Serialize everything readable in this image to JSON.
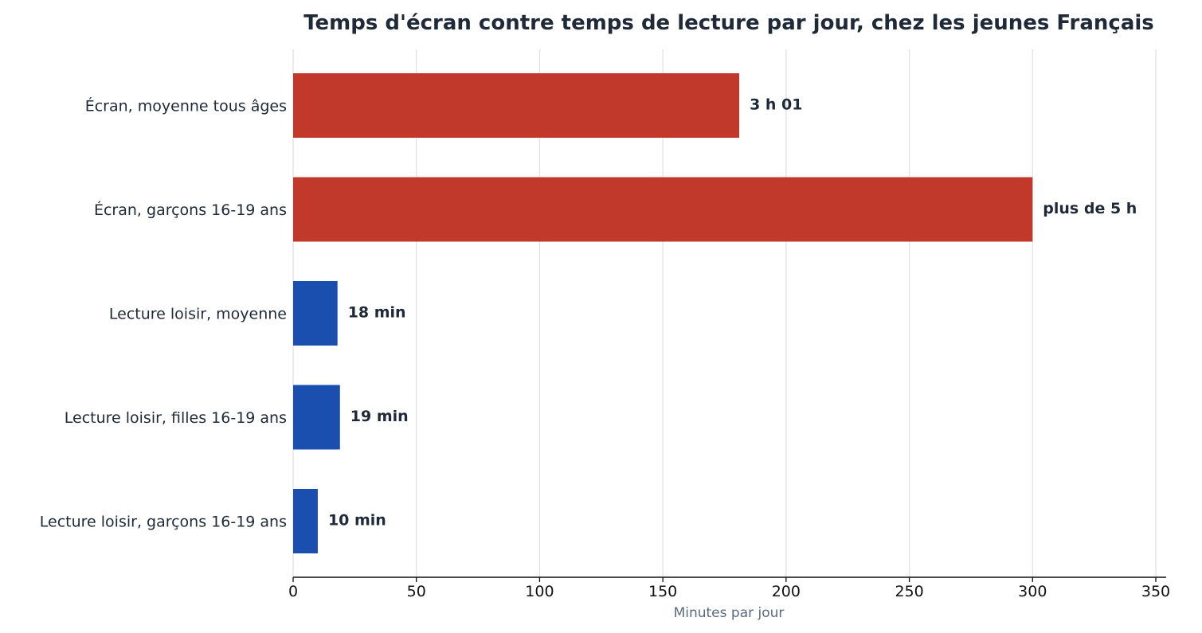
{
  "chart_data": {
    "type": "bar",
    "orientation": "horizontal",
    "title": "Temps d'écran contre temps de lecture par jour, chez les jeunes Français",
    "xlabel": "Minutes par jour",
    "ylabel": "",
    "xlim": [
      0,
      350
    ],
    "xticks": [
      0,
      50,
      100,
      150,
      200,
      250,
      300,
      350
    ],
    "grid": "vertical",
    "categories": [
      "Écran, moyenne tous âges",
      "Écran, garçons 16-19 ans",
      "Lecture loisir, moyenne",
      "Lecture loisir, filles 16-19 ans",
      "Lecture loisir, garçons 16-19 ans"
    ],
    "values": [
      181,
      300,
      18,
      19,
      10
    ],
    "data_labels": [
      "3 h 01",
      "plus de 5 h",
      "18 min",
      "19 min",
      "10 min"
    ],
    "colors": [
      "#c0392b",
      "#c0392b",
      "#1a4fb0",
      "#1a4fb0",
      "#1a4fb0"
    ]
  }
}
